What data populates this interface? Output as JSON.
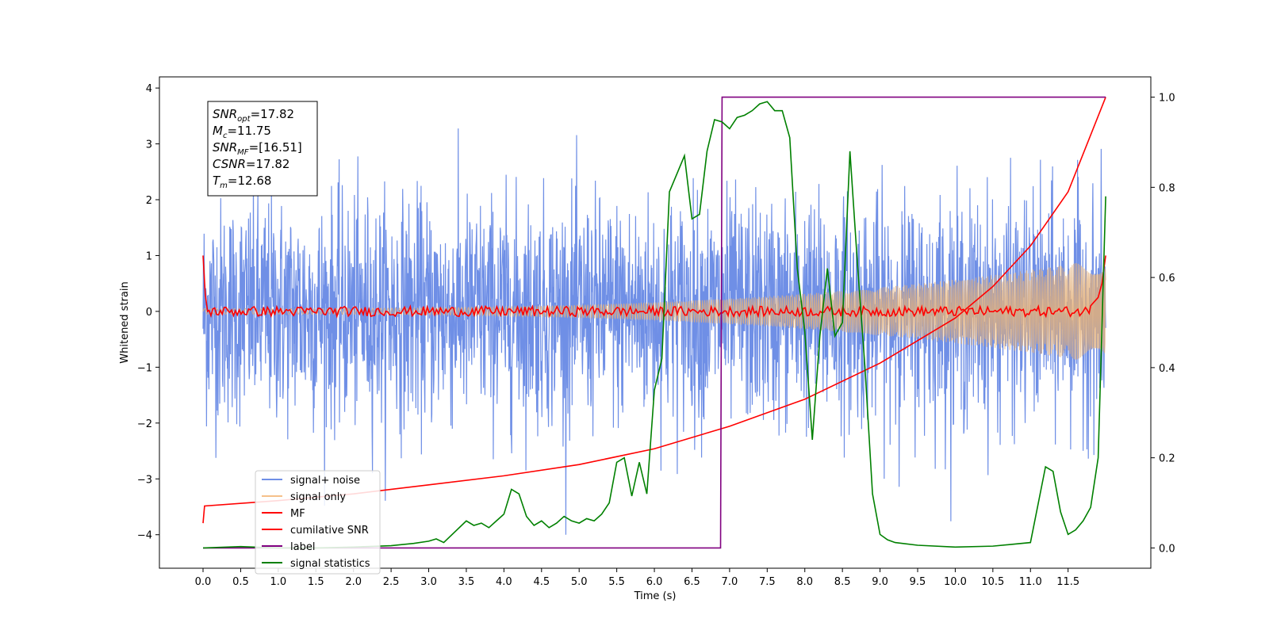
{
  "chart_data": {
    "type": "line",
    "xlabel": "Time (s)",
    "ylabel": "Whitened strain",
    "xlim": [
      -0.58,
      12.6
    ],
    "ylim": [
      -4.6,
      4.2
    ],
    "y2lim": [
      -0.045,
      1.045
    ],
    "grid": false,
    "x_ticks": [
      "0.0",
      "0.5",
      "1.0",
      "1.5",
      "2.0",
      "2.5",
      "3.0",
      "3.5",
      "4.0",
      "4.5",
      "5.0",
      "5.5",
      "6.0",
      "6.5",
      "7.0",
      "7.5",
      "8.0",
      "8.5",
      "9.0",
      "9.5",
      "10.0",
      "10.5",
      "11.0",
      "11.5"
    ],
    "y_ticks": [
      "4",
      "3",
      "2",
      "1",
      "0",
      "−1",
      "−2",
      "−3",
      "−4"
    ],
    "y2_ticks": [
      "1.0",
      "0.8",
      "0.6",
      "0.4",
      "0.2",
      "0.0"
    ],
    "annotation": {
      "lines": [
        {
          "name": "SNR",
          "sub": "opt",
          "value": "=17.82"
        },
        {
          "name": "M",
          "sub": "c",
          "value": "=11.75"
        },
        {
          "name": "SNR",
          "sub": "MF",
          "value": "=[16.51]"
        },
        {
          "name": "CSNR",
          "sub": "",
          "value": "=17.82"
        },
        {
          "name": "T",
          "sub": "m",
          "value": "=12.68"
        }
      ]
    },
    "legend": {
      "position": "lower-left",
      "items": [
        {
          "label": "signal+ noise",
          "color": "#6f8fe6"
        },
        {
          "label": "signal only",
          "color": "#f5c08a"
        },
        {
          "label": "MF",
          "color": "#ff0000"
        },
        {
          "label": "cumilative SNR",
          "color": "#ff0000"
        },
        {
          "label": "label",
          "color": "#800080"
        },
        {
          "label": "signal statistics",
          "color": "#008000"
        }
      ]
    },
    "series": [
      {
        "name": "signal+ noise",
        "axis": "left",
        "style": "noise",
        "color": "#6f8fe6",
        "t_start": 0.0,
        "t_end": 12.0,
        "typical_amplitude": 1.0,
        "peak_range": [
          -4.0,
          4.0
        ]
      },
      {
        "name": "signal only",
        "axis": "left",
        "style": "chirp",
        "color": "#e3b07a",
        "amplitude_start": 0.05,
        "amplitude_end": 0.95
      },
      {
        "name": "MF",
        "axis": "left",
        "style": "line",
        "color": "#ff0000",
        "x": [
          0.0,
          0.03,
          0.06,
          0.1,
          12.0
        ],
        "y": [
          1.0,
          0.3,
          0.0,
          0.05,
          0.0
        ],
        "end_rise": {
          "x": [
            11.8,
            11.9,
            11.95,
            12.0
          ],
          "y": [
            0.1,
            0.25,
            0.5,
            1.0
          ]
        }
      },
      {
        "name": "cumilative SNR",
        "axis": "right",
        "style": "line",
        "color": "#ff0000",
        "x": [
          0.0,
          0.02,
          1.0,
          2.0,
          3.0,
          4.0,
          5.0,
          6.0,
          7.0,
          8.0,
          9.0,
          10.0,
          10.5,
          11.0,
          11.5,
          12.0
        ],
        "y": [
          0.055,
          0.093,
          0.105,
          0.12,
          0.14,
          0.16,
          0.185,
          0.22,
          0.27,
          0.33,
          0.41,
          0.51,
          0.58,
          0.67,
          0.79,
          1.0
        ]
      },
      {
        "name": "label",
        "axis": "right",
        "style": "step",
        "color": "#800080",
        "x": [
          0.0,
          6.88,
          6.9,
          12.0
        ],
        "y": [
          0.0,
          0.0,
          1.0,
          1.0
        ]
      },
      {
        "name": "signal statistics",
        "axis": "right",
        "style": "line",
        "color": "#008000",
        "x": [
          0.0,
          0.5,
          1.0,
          1.5,
          2.0,
          2.5,
          2.8,
          3.0,
          3.1,
          3.2,
          3.5,
          3.6,
          3.7,
          3.8,
          3.9,
          4.0,
          4.1,
          4.2,
          4.3,
          4.4,
          4.5,
          4.6,
          4.7,
          4.8,
          4.9,
          5.0,
          5.1,
          5.2,
          5.3,
          5.4,
          5.5,
          5.6,
          5.7,
          5.8,
          5.9,
          6.0,
          6.1,
          6.2,
          6.3,
          6.4,
          6.5,
          6.6,
          6.7,
          6.8,
          6.9,
          7.0,
          7.1,
          7.2,
          7.3,
          7.4,
          7.5,
          7.6,
          7.7,
          7.8,
          7.9,
          8.0,
          8.1,
          8.2,
          8.3,
          8.4,
          8.5,
          8.6,
          8.7,
          8.8,
          8.9,
          9.0,
          9.1,
          9.2,
          9.5,
          10.0,
          10.5,
          11.0,
          11.2,
          11.3,
          11.4,
          11.5,
          11.6,
          11.7,
          11.8,
          11.9,
          12.0
        ],
        "y": [
          0.0,
          0.003,
          0.0,
          0.0,
          0.002,
          0.005,
          0.01,
          0.015,
          0.02,
          0.012,
          0.06,
          0.05,
          0.055,
          0.045,
          0.06,
          0.075,
          0.13,
          0.12,
          0.07,
          0.05,
          0.06,
          0.045,
          0.055,
          0.07,
          0.06,
          0.055,
          0.065,
          0.06,
          0.075,
          0.1,
          0.19,
          0.2,
          0.115,
          0.19,
          0.12,
          0.35,
          0.42,
          0.79,
          0.83,
          0.87,
          0.73,
          0.74,
          0.88,
          0.95,
          0.945,
          0.93,
          0.955,
          0.96,
          0.97,
          0.985,
          0.99,
          0.97,
          0.97,
          0.91,
          0.62,
          0.48,
          0.24,
          0.47,
          0.62,
          0.47,
          0.5,
          0.88,
          0.63,
          0.4,
          0.12,
          0.03,
          0.018,
          0.012,
          0.006,
          0.002,
          0.004,
          0.012,
          0.18,
          0.17,
          0.08,
          0.03,
          0.04,
          0.06,
          0.09,
          0.2,
          0.78
        ]
      }
    ]
  }
}
